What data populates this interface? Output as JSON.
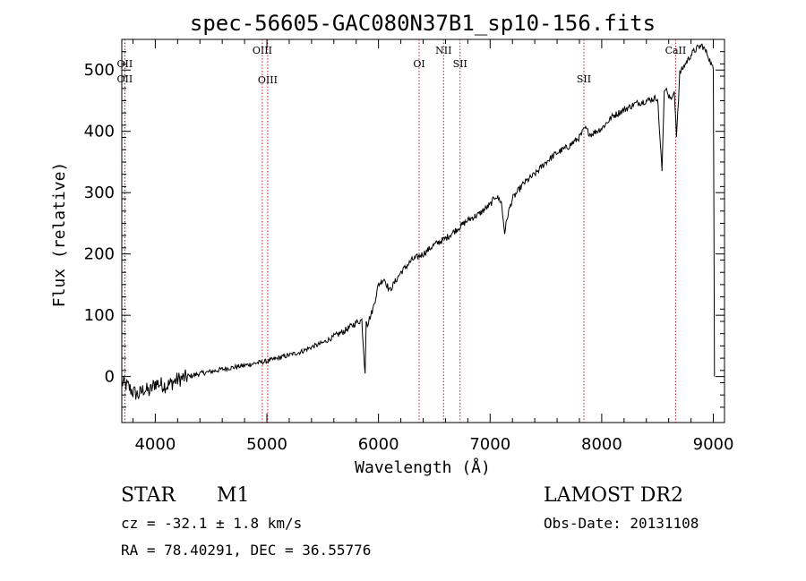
{
  "chart_data": {
    "type": "line",
    "title": "spec-56605-GAC080N37B1_sp10-156.fits",
    "xlabel": "Wavelength (Å)",
    "ylabel": "Flux (relative)",
    "xlim": [
      3700,
      9100
    ],
    "ylim": [
      -75,
      550
    ],
    "x_ticks": [
      4000,
      5000,
      6000,
      7000,
      8000,
      9000
    ],
    "y_ticks": [
      0,
      100,
      200,
      300,
      400,
      500
    ],
    "grid": false,
    "series": [
      {
        "x": [
          3700,
          3750,
          3800,
          3850,
          3900,
          3950,
          4000,
          4100,
          4200,
          4300,
          4400,
          4500,
          4600,
          4700,
          4800,
          4900,
          5000,
          5100,
          5200,
          5300,
          5400,
          5500,
          5600,
          5700,
          5800,
          5850,
          5880,
          5890,
          5900,
          5950,
          6000,
          6050,
          6100,
          6150,
          6200,
          6300,
          6400,
          6500,
          6600,
          6700,
          6800,
          6900,
          7000,
          7050,
          7100,
          7130,
          7160,
          7200,
          7300,
          7400,
          7500,
          7600,
          7700,
          7800,
          7850,
          7900,
          8000,
          8100,
          8200,
          8300,
          8400,
          8500,
          8540,
          8560,
          8580,
          8600,
          8630,
          8650,
          8670,
          8700,
          8800,
          8850,
          8900,
          8950,
          9000,
          9010
        ],
        "y": [
          -10,
          -15,
          -25,
          -30,
          -20,
          -25,
          -10,
          -15,
          -5,
          0,
          5,
          8,
          12,
          15,
          18,
          22,
          25,
          30,
          35,
          40,
          48,
          55,
          65,
          75,
          88,
          92,
          5,
          90,
          85,
          110,
          150,
          160,
          140,
          155,
          170,
          190,
          200,
          215,
          225,
          240,
          255,
          265,
          280,
          295,
          285,
          235,
          265,
          290,
          315,
          330,
          350,
          365,
          375,
          390,
          405,
          395,
          405,
          425,
          435,
          445,
          450,
          455,
          335,
          465,
          470,
          455,
          455,
          465,
          395,
          495,
          525,
          535,
          540,
          525,
          500,
          0
        ]
      }
    ],
    "annotations": [
      {
        "label": "OII",
        "x": 3727
      },
      {
        "label": "OII",
        "x": 3727
      },
      {
        "label": "OIII",
        "x": 4959
      },
      {
        "label": "OIII",
        "x": 5007
      },
      {
        "label": "OI",
        "x": 6364
      },
      {
        "label": "NII",
        "x": 6583
      },
      {
        "label": "SII",
        "x": 6731
      },
      {
        "label": "SII",
        "x": 7840
      },
      {
        "label": "CaII",
        "x": 8662
      }
    ]
  },
  "footer": {
    "class_label": "STAR",
    "subclass": "M1",
    "survey": "LAMOST DR2",
    "redshift": "cz = -32.1 ± 1.8 km/s",
    "obs_date": "Obs-Date: 20131108",
    "coords": "RA =  78.40291, DEC =  36.55776"
  }
}
